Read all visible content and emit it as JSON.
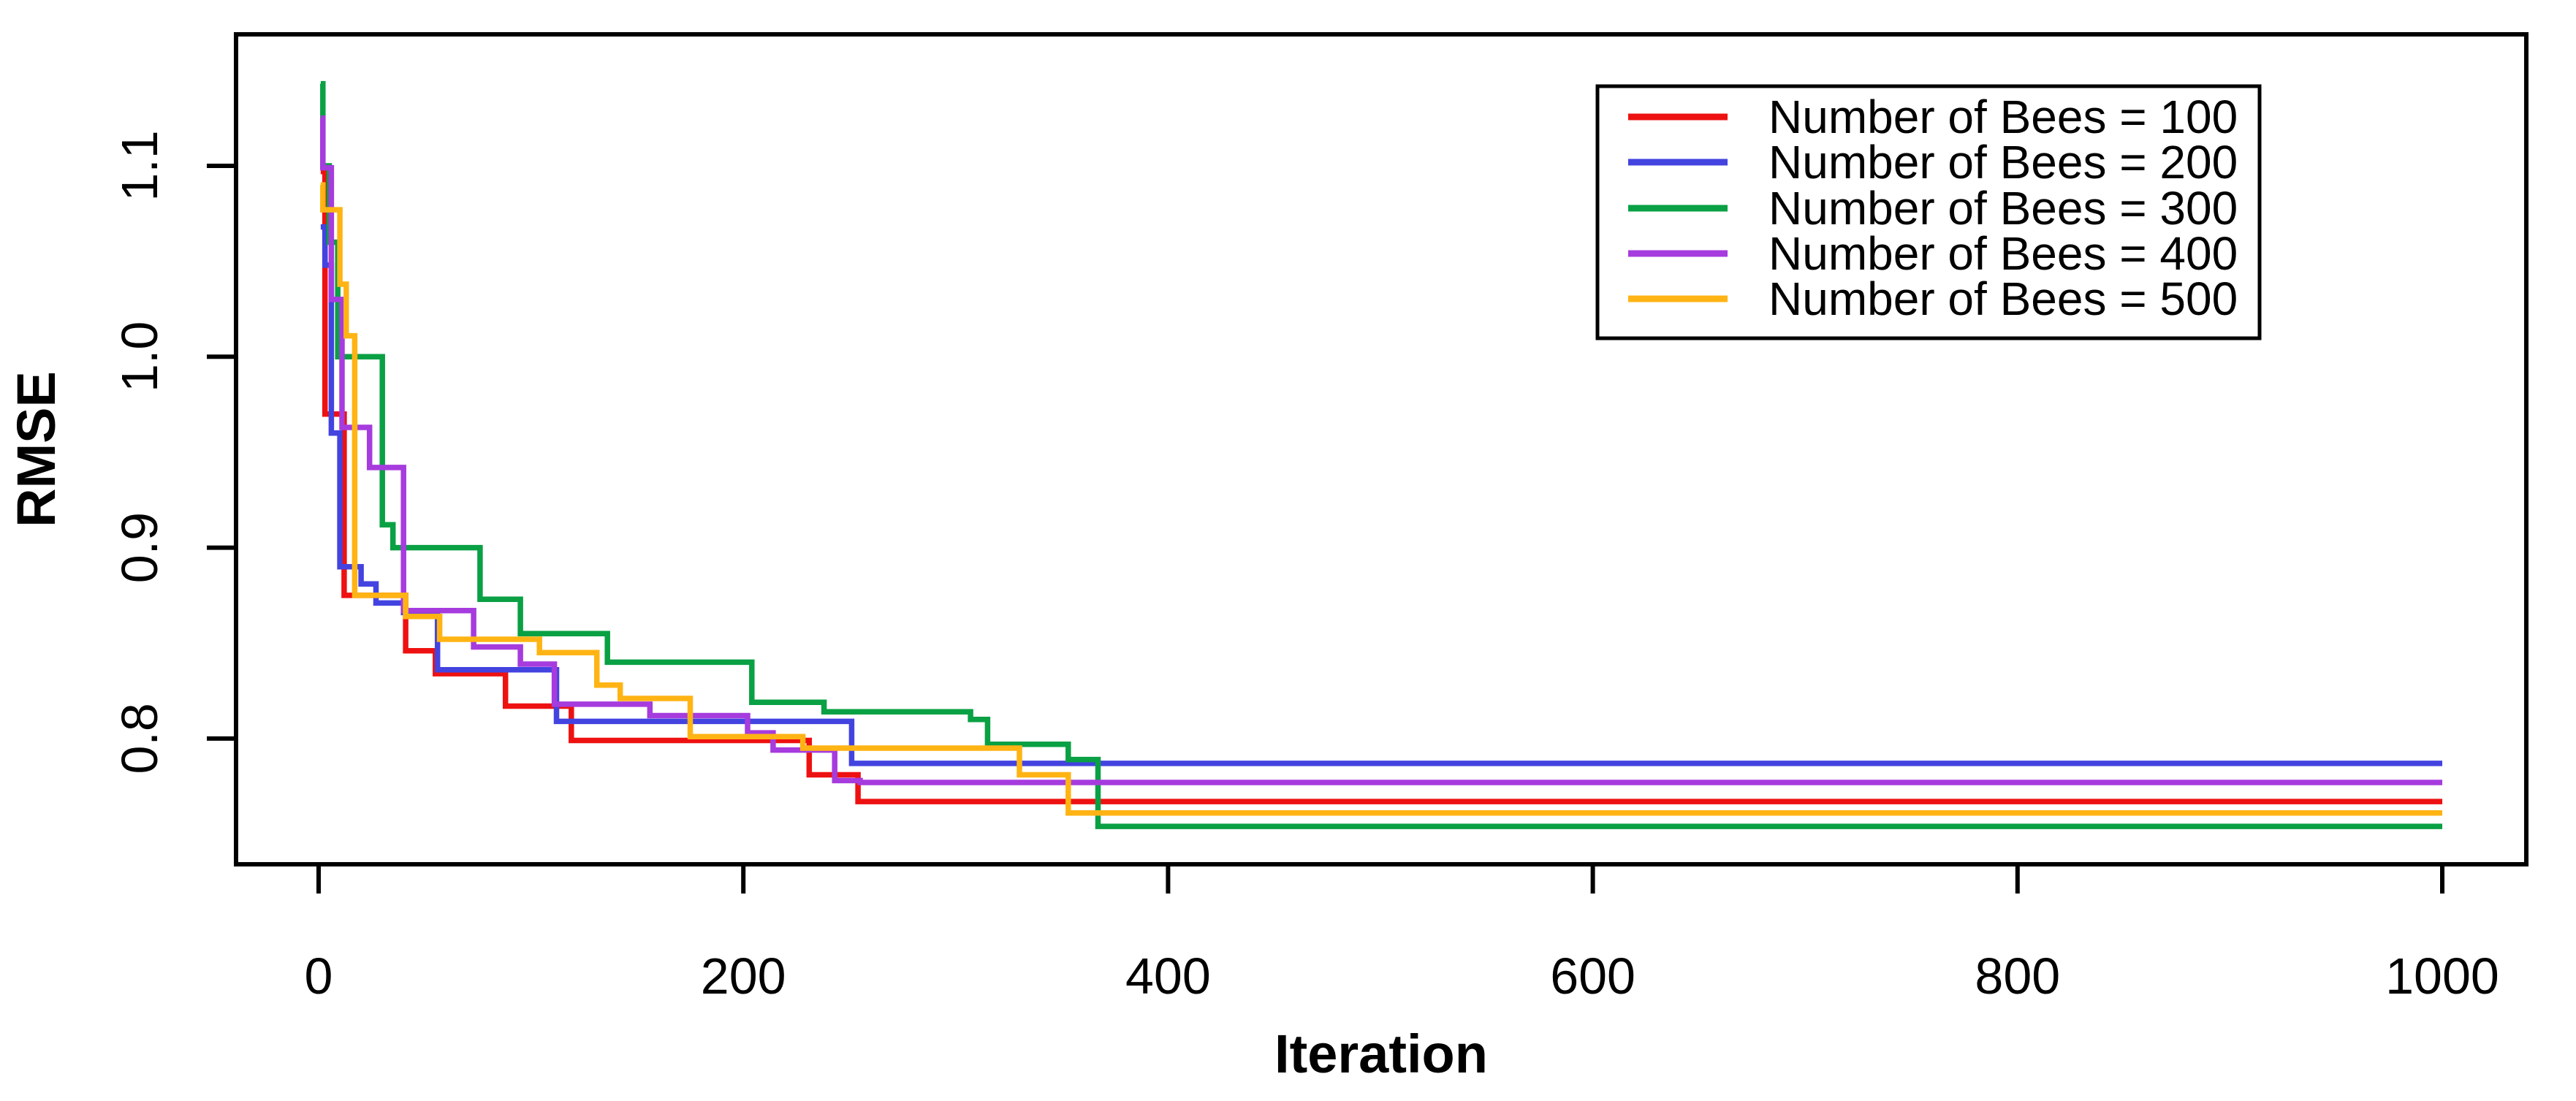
{
  "chart_data": {
    "type": "line",
    "line_style": "step-after",
    "title": "",
    "xlabel": "Iteration",
    "ylabel": "RMSE",
    "grid": false,
    "background": "#ffffff",
    "axis_color": "#000000",
    "xlim": [
      1,
      1000
    ],
    "ylim": [
      0.734,
      1.169
    ],
    "x_ticks": [
      {
        "value": 0,
        "label": "0"
      },
      {
        "value": 200,
        "label": "200"
      },
      {
        "value": 400,
        "label": "400"
      },
      {
        "value": 600,
        "label": "600"
      },
      {
        "value": 800,
        "label": "800"
      },
      {
        "value": 1000,
        "label": "1000"
      }
    ],
    "y_ticks": [
      {
        "value": 0.8,
        "label": "0.8"
      },
      {
        "value": 0.9,
        "label": "0.9"
      },
      {
        "value": 1.0,
        "label": "1.0"
      },
      {
        "value": 1.1,
        "label": "1.1"
      }
    ],
    "legend_position": "top-right",
    "series": [
      {
        "name": "Number of Bees = 100",
        "color": "#EE1111",
        "points": [
          [
            1,
            1.097
          ],
          [
            3,
            0.97
          ],
          [
            12,
            0.875
          ],
          [
            41,
            0.846
          ],
          [
            55,
            0.834
          ],
          [
            88,
            0.817
          ],
          [
            119,
            0.799
          ],
          [
            231,
            0.781
          ],
          [
            254,
            0.767
          ],
          [
            1000,
            0.767
          ]
        ]
      },
      {
        "name": "Number of Bees = 200",
        "color": "#4343E0",
        "points": [
          [
            1,
            1.068
          ],
          [
            3,
            1.048
          ],
          [
            6,
            0.96
          ],
          [
            10,
            0.89
          ],
          [
            20,
            0.881
          ],
          [
            27,
            0.871
          ],
          [
            40,
            0.866
          ],
          [
            56,
            0.836
          ],
          [
            112,
            0.809
          ],
          [
            251,
            0.787
          ],
          [
            1000,
            0.787
          ]
        ]
      },
      {
        "name": "Number of Bees = 300",
        "color": "#0AA044",
        "points": [
          [
            1,
            1.143
          ],
          [
            2,
            1.1
          ],
          [
            5,
            1.06
          ],
          [
            9,
            1.0
          ],
          [
            30,
            0.912
          ],
          [
            35,
            0.9
          ],
          [
            76,
            0.873
          ],
          [
            95,
            0.855
          ],
          [
            136,
            0.84
          ],
          [
            204,
            0.819
          ],
          [
            238,
            0.814
          ],
          [
            307,
            0.81
          ],
          [
            315,
            0.797
          ],
          [
            353,
            0.789
          ],
          [
            367,
            0.754
          ],
          [
            1000,
            0.754
          ]
        ]
      },
      {
        "name": "Number of Bees = 400",
        "color": "#A63BDE",
        "points": [
          [
            1,
            1.125
          ],
          [
            2,
            1.099
          ],
          [
            6,
            1.03
          ],
          [
            11,
            0.963
          ],
          [
            24,
            0.942
          ],
          [
            40,
            0.867
          ],
          [
            73,
            0.848
          ],
          [
            95,
            0.839
          ],
          [
            111,
            0.818
          ],
          [
            156,
            0.812
          ],
          [
            202,
            0.803
          ],
          [
            214,
            0.794
          ],
          [
            243,
            0.778
          ],
          [
            255,
            0.777
          ],
          [
            1000,
            0.777
          ]
        ]
      },
      {
        "name": "Number of Bees = 500",
        "color": "#FFB414",
        "points": [
          [
            1,
            1.09
          ],
          [
            2,
            1.077
          ],
          [
            10,
            1.038
          ],
          [
            13,
            1.011
          ],
          [
            17,
            0.875
          ],
          [
            41,
            0.864
          ],
          [
            57,
            0.852
          ],
          [
            104,
            0.845
          ],
          [
            131,
            0.828
          ],
          [
            142,
            0.821
          ],
          [
            175,
            0.801
          ],
          [
            228,
            0.795
          ],
          [
            330,
            0.781
          ],
          [
            353,
            0.761
          ],
          [
            1000,
            0.761
          ]
        ]
      }
    ],
    "final_values": {
      "Number of Bees = 100": 0.767,
      "Number of Bees = 200": 0.787,
      "Number of Bees = 300": 0.754,
      "Number of Bees = 400": 0.777,
      "Number of Bees = 500": 0.761
    }
  }
}
